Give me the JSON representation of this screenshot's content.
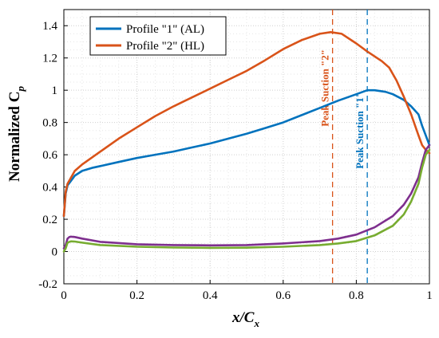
{
  "chart_data": {
    "type": "line",
    "xlabel": "x/C",
    "xlabel_sub": "x",
    "ylabel": "Normalized  C",
    "ylabel_sub": "p",
    "xlim": [
      0,
      1
    ],
    "ylim": [
      -0.2,
      1.5
    ],
    "xticks": [
      0,
      0.2,
      0.4,
      0.6,
      0.8,
      1
    ],
    "xtick_labels": [
      "0",
      "0.2",
      "0.4",
      "0.6",
      "0.8",
      "1"
    ],
    "yticks": [
      -0.2,
      0,
      0.2,
      0.4,
      0.6,
      0.8,
      1,
      1.2,
      1.4
    ],
    "ytick_labels": [
      "-0.2",
      "0",
      "0.2",
      "0.4",
      "0.6",
      "0.8",
      "1",
      "1.2",
      "1.4"
    ],
    "grid": true,
    "legend_position": "top-left",
    "series": [
      {
        "name": "Profile \"1\" (AL)",
        "color": "#0072bd",
        "x": [
          0,
          0.005,
          0.01,
          0.02,
          0.03,
          0.05,
          0.08,
          0.1,
          0.15,
          0.2,
          0.25,
          0.3,
          0.35,
          0.4,
          0.45,
          0.5,
          0.55,
          0.6,
          0.65,
          0.7,
          0.75,
          0.8,
          0.83,
          0.85,
          0.88,
          0.9,
          0.93,
          0.95,
          0.97,
          0.98,
          0.99,
          1.0
        ],
        "y": [
          0.22,
          0.36,
          0.41,
          0.44,
          0.47,
          0.5,
          0.52,
          0.53,
          0.555,
          0.58,
          0.6,
          0.62,
          0.645,
          0.67,
          0.7,
          0.73,
          0.765,
          0.8,
          0.845,
          0.89,
          0.935,
          0.975,
          1.0,
          1.0,
          0.99,
          0.975,
          0.94,
          0.9,
          0.85,
          0.78,
          0.72,
          0.66
        ]
      },
      {
        "name": "Profile \"2\" (HL)",
        "color": "#d95319",
        "x": [
          0,
          0.005,
          0.01,
          0.02,
          0.03,
          0.05,
          0.1,
          0.15,
          0.2,
          0.25,
          0.3,
          0.35,
          0.4,
          0.45,
          0.5,
          0.55,
          0.6,
          0.65,
          0.7,
          0.73,
          0.76,
          0.8,
          0.83,
          0.85,
          0.87,
          0.89,
          0.91,
          0.93,
          0.95,
          0.97,
          0.98,
          0.99,
          1.0
        ],
        "y": [
          0.22,
          0.37,
          0.42,
          0.46,
          0.5,
          0.54,
          0.62,
          0.7,
          0.77,
          0.84,
          0.9,
          0.955,
          1.01,
          1.065,
          1.12,
          1.185,
          1.255,
          1.31,
          1.35,
          1.36,
          1.35,
          1.29,
          1.24,
          1.21,
          1.18,
          1.14,
          1.06,
          0.96,
          0.85,
          0.72,
          0.66,
          0.63,
          0.61
        ]
      },
      {
        "name": "",
        "color": "#7e2f8e",
        "x": [
          0,
          0.005,
          0.01,
          0.015,
          0.02,
          0.03,
          0.05,
          0.1,
          0.2,
          0.3,
          0.4,
          0.5,
          0.6,
          0.7,
          0.75,
          0.8,
          0.85,
          0.9,
          0.93,
          0.95,
          0.97,
          0.98,
          0.99,
          1.0
        ],
        "y": [
          0.02,
          0.04,
          0.08,
          0.09,
          0.092,
          0.09,
          0.08,
          0.06,
          0.045,
          0.04,
          0.038,
          0.04,
          0.05,
          0.065,
          0.08,
          0.105,
          0.15,
          0.22,
          0.29,
          0.36,
          0.46,
          0.55,
          0.63,
          0.66
        ]
      },
      {
        "name": "",
        "color": "#77ac30",
        "x": [
          0,
          0.005,
          0.01,
          0.015,
          0.02,
          0.03,
          0.05,
          0.1,
          0.2,
          0.3,
          0.4,
          0.5,
          0.6,
          0.7,
          0.75,
          0.8,
          0.85,
          0.9,
          0.93,
          0.95,
          0.97,
          0.98,
          0.99,
          1.0
        ],
        "y": [
          0.0,
          0.02,
          0.055,
          0.06,
          0.063,
          0.062,
          0.055,
          0.04,
          0.03,
          0.025,
          0.023,
          0.024,
          0.03,
          0.04,
          0.05,
          0.065,
          0.1,
          0.16,
          0.23,
          0.31,
          0.42,
          0.52,
          0.6,
          0.63
        ]
      }
    ],
    "vlines": [
      {
        "x": 0.735,
        "color": "#d95319",
        "label": "Peak Suction \"2\"",
        "label_color": "#d95319"
      },
      {
        "x": 0.83,
        "color": "#0072bd",
        "label": "Peak Suction \"1\"",
        "label_color": "#0072bd"
      }
    ]
  },
  "legend": {
    "items": [
      {
        "label": "Profile \"1\" (AL)",
        "color": "#0072bd"
      },
      {
        "label": "Profile \"2\" (HL)",
        "color": "#d95319"
      }
    ]
  }
}
